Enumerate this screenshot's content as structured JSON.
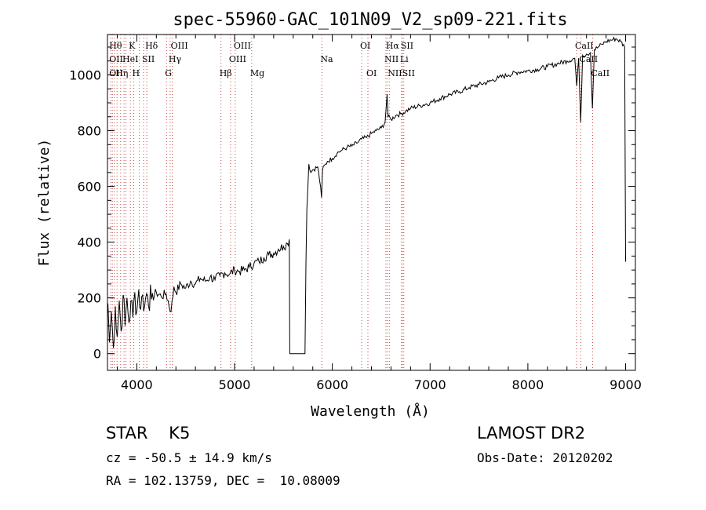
{
  "chart_data": {
    "type": "line",
    "title": "spec-55960-GAC_101N09_V2_sp09-221.fits",
    "xlabel": "Wavelength (Å)",
    "ylabel": "Flux (relative)",
    "xlim": [
      3700,
      9100
    ],
    "ylim": [
      -60,
      1145
    ],
    "xticks": [
      4000,
      5000,
      6000,
      7000,
      8000,
      9000
    ],
    "yticks": [
      0,
      200,
      400,
      600,
      800,
      1000
    ],
    "grid": false,
    "series": [
      {
        "points": [
          [
            3705,
            180
          ],
          [
            3720,
            40
          ],
          [
            3740,
            150
          ],
          [
            3760,
            20
          ],
          [
            3780,
            170
          ],
          [
            3800,
            60
          ],
          [
            3820,
            190
          ],
          [
            3840,
            80
          ],
          [
            3860,
            210
          ],
          [
            3880,
            100
          ],
          [
            3900,
            200
          ],
          [
            3920,
            110
          ],
          [
            3940,
            190
          ],
          [
            3960,
            130
          ],
          [
            3980,
            220
          ],
          [
            4000,
            150
          ],
          [
            4020,
            230
          ],
          [
            4040,
            160
          ],
          [
            4060,
            210
          ],
          [
            4080,
            170
          ],
          [
            4100,
            215
          ],
          [
            4150,
            195
          ],
          [
            4200,
            220
          ],
          [
            4250,
            205
          ],
          [
            4300,
            215
          ],
          [
            4350,
            150
          ],
          [
            4380,
            240
          ],
          [
            4400,
            220
          ],
          [
            4450,
            250
          ],
          [
            4500,
            235
          ],
          [
            4550,
            260
          ],
          [
            4600,
            250
          ],
          [
            4650,
            270
          ],
          [
            4700,
            260
          ],
          [
            4750,
            275
          ],
          [
            4800,
            265
          ],
          [
            4850,
            280
          ],
          [
            4900,
            290
          ],
          [
            4950,
            285
          ],
          [
            5000,
            300
          ],
          [
            5050,
            295
          ],
          [
            5100,
            300
          ],
          [
            5150,
            310
          ],
          [
            5200,
            325
          ],
          [
            5250,
            330
          ],
          [
            5300,
            345
          ],
          [
            5350,
            355
          ],
          [
            5400,
            360
          ],
          [
            5450,
            375
          ],
          [
            5500,
            385
          ],
          [
            5540,
            395
          ],
          [
            5560,
            410
          ],
          [
            5565,
            0
          ],
          [
            5720,
            0
          ],
          [
            5730,
            320
          ],
          [
            5740,
            520
          ],
          [
            5760,
            680
          ],
          [
            5780,
            650
          ],
          [
            5800,
            660
          ],
          [
            5850,
            670
          ],
          [
            5880,
            600
          ],
          [
            5890,
            560
          ],
          [
            5900,
            660
          ],
          [
            5950,
            690
          ],
          [
            6000,
            700
          ],
          [
            6050,
            720
          ],
          [
            6100,
            730
          ],
          [
            6150,
            740
          ],
          [
            6200,
            745
          ],
          [
            6250,
            755
          ],
          [
            6300,
            770
          ],
          [
            6350,
            775
          ],
          [
            6400,
            790
          ],
          [
            6450,
            800
          ],
          [
            6500,
            810
          ],
          [
            6540,
            830
          ],
          [
            6560,
            930
          ],
          [
            6570,
            850
          ],
          [
            6600,
            840
          ],
          [
            6650,
            855
          ],
          [
            6700,
            860
          ],
          [
            6750,
            870
          ],
          [
            6800,
            880
          ],
          [
            6900,
            890
          ],
          [
            7000,
            900
          ],
          [
            7100,
            915
          ],
          [
            7200,
            930
          ],
          [
            7300,
            940
          ],
          [
            7400,
            955
          ],
          [
            7500,
            965
          ],
          [
            7600,
            975
          ],
          [
            7700,
            990
          ],
          [
            7800,
            1000
          ],
          [
            7900,
            1010
          ],
          [
            8000,
            1015
          ],
          [
            8100,
            1020
          ],
          [
            8200,
            1030
          ],
          [
            8300,
            1040
          ],
          [
            8400,
            1050
          ],
          [
            8480,
            1060
          ],
          [
            8500,
            960
          ],
          [
            8520,
            1060
          ],
          [
            8540,
            830
          ],
          [
            8560,
            1070
          ],
          [
            8600,
            1075
          ],
          [
            8640,
            1080
          ],
          [
            8660,
            880
          ],
          [
            8680,
            1090
          ],
          [
            8720,
            1100
          ],
          [
            8760,
            1110
          ],
          [
            8800,
            1120
          ],
          [
            8850,
            1125
          ],
          [
            8900,
            1130
          ],
          [
            8950,
            1120
          ],
          [
            8990,
            1100
          ],
          [
            9000,
            330
          ]
        ]
      }
    ],
    "lines": [
      {
        "x": 3734,
        "labels": [
          {
            "text": "Hθ",
            "row": 1
          },
          {
            "text": "OII",
            "row": 2
          },
          {
            "text": "OII",
            "row": 3
          }
        ]
      },
      {
        "x": 3750,
        "labels": []
      },
      {
        "x": 3771,
        "labels": []
      },
      {
        "x": 3798,
        "labels": [
          {
            "text": "Hη",
            "row": 3
          }
        ]
      },
      {
        "x": 3835,
        "labels": []
      },
      {
        "x": 3869,
        "labels": [
          {
            "text": "HeI",
            "row": 2
          }
        ]
      },
      {
        "x": 3889,
        "labels": []
      },
      {
        "x": 3934,
        "labels": [
          {
            "text": "K",
            "row": 1
          }
        ]
      },
      {
        "x": 3969,
        "labels": [
          {
            "text": "H",
            "row": 3
          }
        ]
      },
      {
        "x": 4026,
        "labels": []
      },
      {
        "x": 4069,
        "labels": [
          {
            "text": "SII",
            "row": 2
          }
        ]
      },
      {
        "x": 4102,
        "labels": [
          {
            "text": "Hδ",
            "row": 1
          }
        ]
      },
      {
        "x": 4304,
        "labels": [
          {
            "text": "G",
            "row": 3
          }
        ]
      },
      {
        "x": 4341,
        "labels": [
          {
            "text": "Hγ",
            "row": 2
          }
        ]
      },
      {
        "x": 4363,
        "labels": [
          {
            "text": "OIII",
            "row": 1
          }
        ]
      },
      {
        "x": 4861,
        "labels": [
          {
            "text": "Hβ",
            "row": 3
          }
        ]
      },
      {
        "x": 4959,
        "labels": [
          {
            "text": "OIII",
            "row": 2
          }
        ]
      },
      {
        "x": 5007,
        "labels": [
          {
            "text": "OIII",
            "row": 1
          }
        ]
      },
      {
        "x": 5175,
        "labels": [
          {
            "text": "Mg",
            "row": 3
          }
        ]
      },
      {
        "x": 5893,
        "labels": [
          {
            "text": "Na",
            "row": 2
          }
        ]
      },
      {
        "x": 6300,
        "labels": [
          {
            "text": "OI",
            "row": 1
          }
        ]
      },
      {
        "x": 6364,
        "labels": [
          {
            "text": "OI",
            "row": 3
          }
        ]
      },
      {
        "x": 6548,
        "labels": [
          {
            "text": "NII",
            "row": 2
          }
        ]
      },
      {
        "x": 6563,
        "labels": [
          {
            "text": "Hα",
            "row": 1
          }
        ]
      },
      {
        "x": 6583,
        "labels": [
          {
            "text": "NII",
            "row": 3
          }
        ]
      },
      {
        "x": 6708,
        "labels": [
          {
            "text": "Li",
            "row": 2
          }
        ]
      },
      {
        "x": 6716,
        "labels": [
          {
            "text": "SII",
            "row": 1
          }
        ]
      },
      {
        "x": 6731,
        "labels": [
          {
            "text": "SII",
            "row": 3
          }
        ]
      },
      {
        "x": 8498,
        "labels": [
          {
            "text": "CaII",
            "row": 1
          }
        ]
      },
      {
        "x": 8542,
        "labels": [
          {
            "text": "CaII",
            "row": 2
          }
        ]
      },
      {
        "x": 8662,
        "labels": [
          {
            "text": "CaII",
            "row": 3
          }
        ]
      }
    ]
  },
  "info": {
    "object": "STAR    K5",
    "survey": "LAMOST DR2",
    "cz": "cz = -50.5 ± 14.9 km/s",
    "obs_date": "Obs-Date: 20120202",
    "radec": "RA = 102.13759, DEC =  10.08009"
  }
}
